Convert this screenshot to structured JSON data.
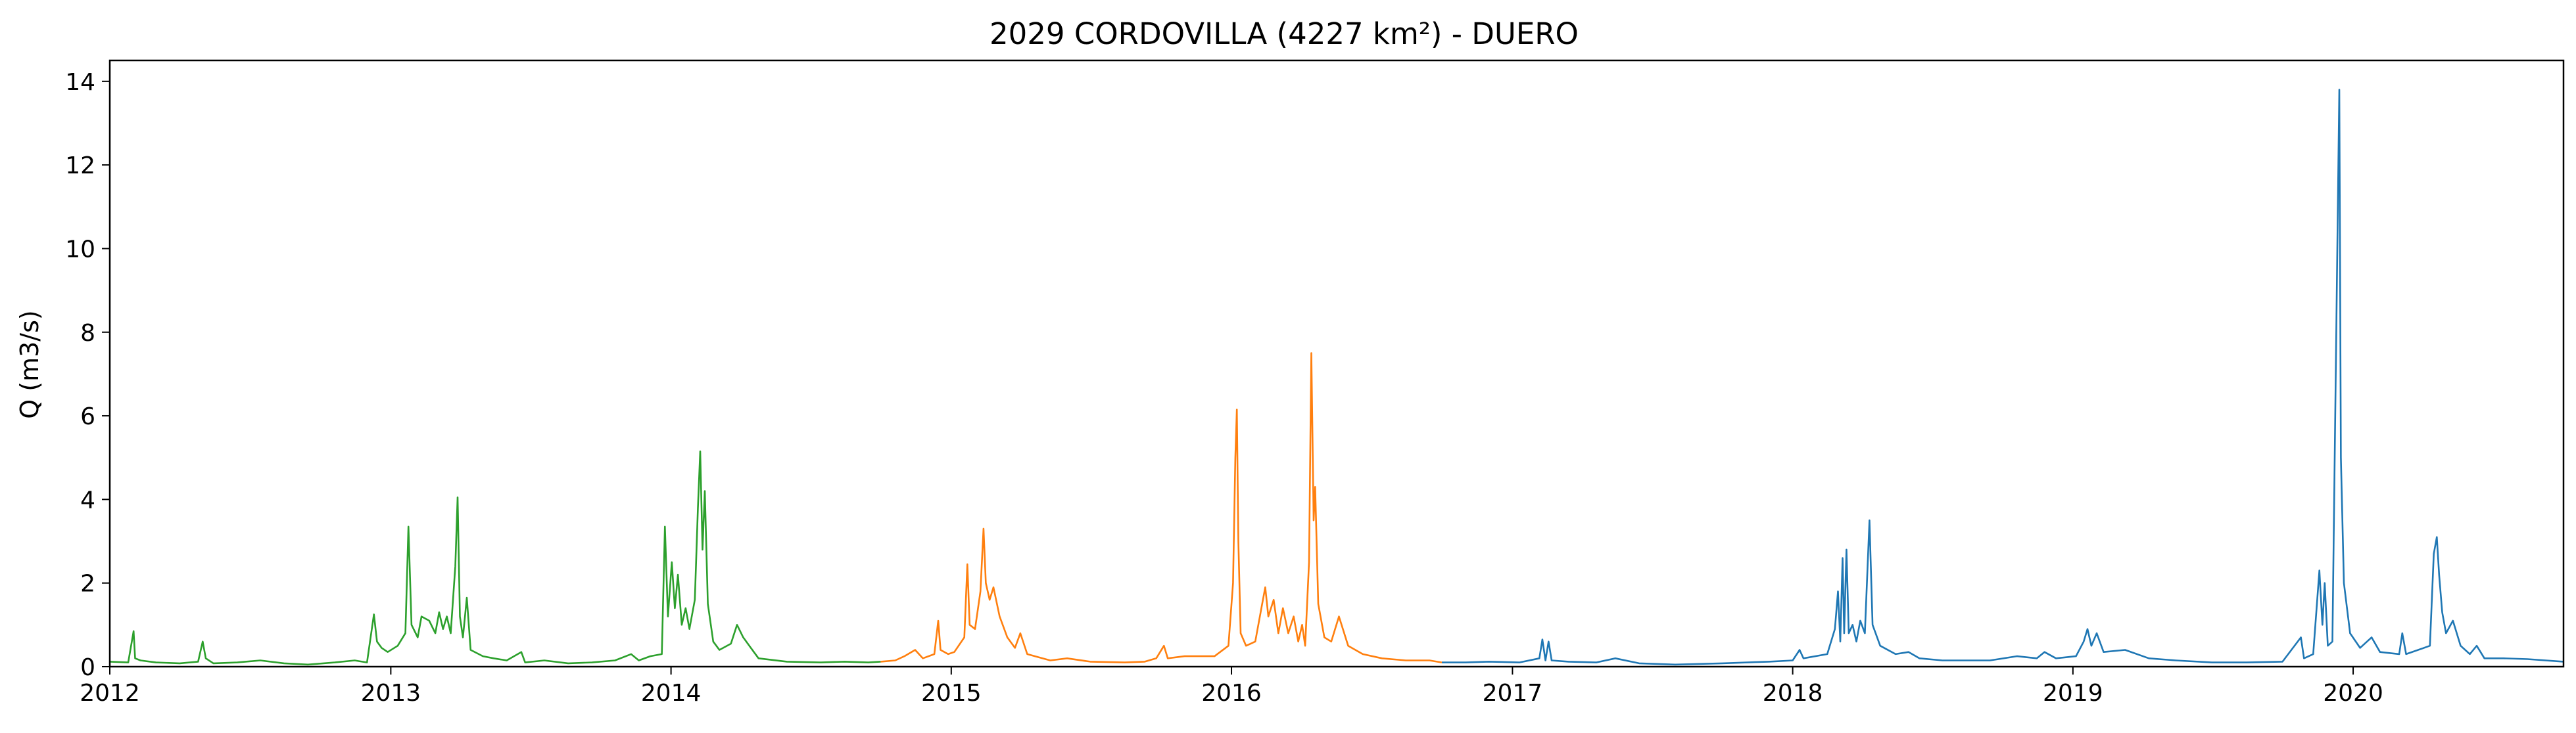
{
  "chart_data": {
    "type": "line",
    "title": "2029 CORDOVILLA (4227 km²) - DUERO",
    "xlabel": "",
    "ylabel": "Q (m3/s)",
    "xlim": [
      "2012-01-01",
      "2020-10-01"
    ],
    "ylim": [
      0,
      14.5
    ],
    "x_ticks": [
      "2012",
      "2013",
      "2014",
      "2015",
      "2016",
      "2017",
      "2018",
      "2019",
      "2020"
    ],
    "y_ticks": [
      "0",
      "2",
      "4",
      "6",
      "8",
      "10",
      "12",
      "14"
    ],
    "grid": false,
    "legend": "none",
    "series": [
      {
        "color": "#2ca02c",
        "points": [
          [
            "2012-01-01",
            0.12
          ],
          [
            "2012-01-25",
            0.1
          ],
          [
            "2012-02-01",
            0.85
          ],
          [
            "2012-02-03",
            0.2
          ],
          [
            "2012-02-10",
            0.15
          ],
          [
            "2012-03-01",
            0.1
          ],
          [
            "2012-04-01",
            0.08
          ],
          [
            "2012-04-25",
            0.12
          ],
          [
            "2012-05-01",
            0.6
          ],
          [
            "2012-05-05",
            0.2
          ],
          [
            "2012-05-15",
            0.08
          ],
          [
            "2012-06-15",
            0.1
          ],
          [
            "2012-07-15",
            0.15
          ],
          [
            "2012-08-15",
            0.08
          ],
          [
            "2012-09-15",
            0.05
          ],
          [
            "2012-10-20",
            0.1
          ],
          [
            "2012-11-15",
            0.15
          ],
          [
            "2012-12-01",
            0.1
          ],
          [
            "2012-12-10",
            1.25
          ],
          [
            "2012-12-14",
            0.6
          ],
          [
            "2012-12-20",
            0.45
          ],
          [
            "2012-12-28",
            0.35
          ],
          [
            "2013-01-10",
            0.5
          ],
          [
            "2013-01-20",
            0.8
          ],
          [
            "2013-01-24",
            3.35
          ],
          [
            "2013-01-28",
            1.0
          ],
          [
            "2013-02-05",
            0.7
          ],
          [
            "2013-02-10",
            1.2
          ],
          [
            "2013-02-20",
            1.1
          ],
          [
            "2013-02-28",
            0.8
          ],
          [
            "2013-03-05",
            1.3
          ],
          [
            "2013-03-10",
            0.9
          ],
          [
            "2013-03-15",
            1.2
          ],
          [
            "2013-03-20",
            0.8
          ],
          [
            "2013-03-26",
            2.4
          ],
          [
            "2013-03-29",
            4.05
          ],
          [
            "2013-04-01",
            1.2
          ],
          [
            "2013-04-05",
            0.7
          ],
          [
            "2013-04-10",
            1.65
          ],
          [
            "2013-04-15",
            0.4
          ],
          [
            "2013-05-01",
            0.25
          ],
          [
            "2013-05-15",
            0.2
          ],
          [
            "2013-06-01",
            0.15
          ],
          [
            "2013-06-20",
            0.35
          ],
          [
            "2013-06-25",
            0.1
          ],
          [
            "2013-07-20",
            0.15
          ],
          [
            "2013-08-20",
            0.08
          ],
          [
            "2013-09-20",
            0.1
          ],
          [
            "2013-10-20",
            0.15
          ],
          [
            "2013-11-10",
            0.3
          ],
          [
            "2013-11-20",
            0.15
          ],
          [
            "2013-12-05",
            0.25
          ],
          [
            "2013-12-20",
            0.3
          ],
          [
            "2013-12-24",
            3.35
          ],
          [
            "2013-12-28",
            1.2
          ],
          [
            "2014-01-02",
            2.5
          ],
          [
            "2014-01-06",
            1.4
          ],
          [
            "2014-01-10",
            2.2
          ],
          [
            "2014-01-15",
            1.0
          ],
          [
            "2014-01-20",
            1.4
          ],
          [
            "2014-01-25",
            0.9
          ],
          [
            "2014-02-01",
            1.6
          ],
          [
            "2014-02-05",
            3.8
          ],
          [
            "2014-02-08",
            5.15
          ],
          [
            "2014-02-11",
            2.8
          ],
          [
            "2014-02-14",
            4.2
          ],
          [
            "2014-02-18",
            1.5
          ],
          [
            "2014-02-25",
            0.6
          ],
          [
            "2014-03-05",
            0.4
          ],
          [
            "2014-03-20",
            0.55
          ],
          [
            "2014-03-28",
            1.0
          ],
          [
            "2014-04-05",
            0.7
          ],
          [
            "2014-04-15",
            0.45
          ],
          [
            "2014-04-25",
            0.2
          ],
          [
            "2014-06-01",
            0.12
          ],
          [
            "2014-07-15",
            0.1
          ],
          [
            "2014-08-15",
            0.12
          ],
          [
            "2014-09-15",
            0.1
          ],
          [
            "2014-10-01",
            0.12
          ]
        ]
      },
      {
        "color": "#ff7f0e",
        "points": [
          [
            "2014-10-01",
            0.12
          ],
          [
            "2014-10-20",
            0.15
          ],
          [
            "2014-11-01",
            0.25
          ],
          [
            "2014-11-15",
            0.4
          ],
          [
            "2014-11-25",
            0.2
          ],
          [
            "2014-12-10",
            0.3
          ],
          [
            "2014-12-15",
            1.1
          ],
          [
            "2014-12-18",
            0.4
          ],
          [
            "2014-12-28",
            0.3
          ],
          [
            "2015-01-05",
            0.35
          ],
          [
            "2015-01-18",
            0.7
          ],
          [
            "2015-01-22",
            2.45
          ],
          [
            "2015-01-25",
            1.0
          ],
          [
            "2015-02-01",
            0.9
          ],
          [
            "2015-02-08",
            1.8
          ],
          [
            "2015-02-12",
            3.3
          ],
          [
            "2015-02-15",
            2.0
          ],
          [
            "2015-02-20",
            1.6
          ],
          [
            "2015-02-25",
            1.9
          ],
          [
            "2015-03-05",
            1.2
          ],
          [
            "2015-03-15",
            0.7
          ],
          [
            "2015-03-25",
            0.45
          ],
          [
            "2015-04-01",
            0.8
          ],
          [
            "2015-04-10",
            0.3
          ],
          [
            "2015-04-20",
            0.25
          ],
          [
            "2015-05-10",
            0.15
          ],
          [
            "2015-06-01",
            0.2
          ],
          [
            "2015-07-01",
            0.12
          ],
          [
            "2015-08-15",
            0.1
          ],
          [
            "2015-09-10",
            0.12
          ],
          [
            "2015-09-25",
            0.2
          ],
          [
            "2015-10-05",
            0.5
          ],
          [
            "2015-10-10",
            0.2
          ],
          [
            "2015-11-01",
            0.25
          ],
          [
            "2015-12-10",
            0.25
          ],
          [
            "2015-12-28",
            0.5
          ],
          [
            "2016-01-03",
            2.0
          ],
          [
            "2016-01-06",
            5.0
          ],
          [
            "2016-01-08",
            6.15
          ],
          [
            "2016-01-10",
            3.0
          ],
          [
            "2016-01-13",
            0.8
          ],
          [
            "2016-01-20",
            0.5
          ],
          [
            "2016-02-01",
            0.6
          ],
          [
            "2016-02-10",
            1.5
          ],
          [
            "2016-02-14",
            1.9
          ],
          [
            "2016-02-18",
            1.2
          ],
          [
            "2016-02-25",
            1.6
          ],
          [
            "2016-03-02",
            0.8
          ],
          [
            "2016-03-08",
            1.4
          ],
          [
            "2016-03-15",
            0.8
          ],
          [
            "2016-03-22",
            1.2
          ],
          [
            "2016-03-28",
            0.6
          ],
          [
            "2016-04-02",
            1.0
          ],
          [
            "2016-04-06",
            0.5
          ],
          [
            "2016-04-11",
            2.5
          ],
          [
            "2016-04-14",
            7.5
          ],
          [
            "2016-04-17",
            3.5
          ],
          [
            "2016-04-19",
            4.3
          ],
          [
            "2016-04-23",
            1.5
          ],
          [
            "2016-05-01",
            0.7
          ],
          [
            "2016-05-10",
            0.6
          ],
          [
            "2016-05-20",
            1.2
          ],
          [
            "2016-06-01",
            0.5
          ],
          [
            "2016-06-20",
            0.3
          ],
          [
            "2016-07-15",
            0.2
          ],
          [
            "2016-08-15",
            0.15
          ],
          [
            "2016-09-15",
            0.15
          ],
          [
            "2016-10-01",
            0.1
          ]
        ]
      },
      {
        "color": "#1f77b4",
        "points": [
          [
            "2016-10-01",
            0.1
          ],
          [
            "2016-11-01",
            0.1
          ],
          [
            "2016-12-01",
            0.12
          ],
          [
            "2017-01-10",
            0.1
          ],
          [
            "2017-02-05",
            0.2
          ],
          [
            "2017-02-09",
            0.65
          ],
          [
            "2017-02-13",
            0.15
          ],
          [
            "2017-02-17",
            0.6
          ],
          [
            "2017-02-21",
            0.15
          ],
          [
            "2017-03-15",
            0.12
          ],
          [
            "2017-04-20",
            0.1
          ],
          [
            "2017-05-15",
            0.2
          ],
          [
            "2017-06-15",
            0.08
          ],
          [
            "2017-08-01",
            0.05
          ],
          [
            "2017-10-01",
            0.08
          ],
          [
            "2017-12-01",
            0.12
          ],
          [
            "2018-01-01",
            0.15
          ],
          [
            "2018-01-10",
            0.4
          ],
          [
            "2018-01-15",
            0.2
          ],
          [
            "2018-02-15",
            0.3
          ],
          [
            "2018-02-25",
            0.9
          ],
          [
            "2018-03-01",
            1.8
          ],
          [
            "2018-03-04",
            0.6
          ],
          [
            "2018-03-07",
            2.6
          ],
          [
            "2018-03-09",
            0.8
          ],
          [
            "2018-03-12",
            2.8
          ],
          [
            "2018-03-15",
            0.8
          ],
          [
            "2018-03-20",
            1.0
          ],
          [
            "2018-03-25",
            0.6
          ],
          [
            "2018-03-30",
            1.1
          ],
          [
            "2018-04-05",
            0.8
          ],
          [
            "2018-04-11",
            3.5
          ],
          [
            "2018-04-15",
            1.0
          ],
          [
            "2018-04-25",
            0.5
          ],
          [
            "2018-05-15",
            0.3
          ],
          [
            "2018-06-01",
            0.35
          ],
          [
            "2018-06-15",
            0.2
          ],
          [
            "2018-07-15",
            0.15
          ],
          [
            "2018-09-15",
            0.15
          ],
          [
            "2018-10-20",
            0.25
          ],
          [
            "2018-11-15",
            0.2
          ],
          [
            "2018-11-25",
            0.35
          ],
          [
            "2018-12-10",
            0.2
          ],
          [
            "2019-01-05",
            0.25
          ],
          [
            "2019-01-15",
            0.6
          ],
          [
            "2019-01-20",
            0.9
          ],
          [
            "2019-01-25",
            0.5
          ],
          [
            "2019-02-01",
            0.8
          ],
          [
            "2019-02-10",
            0.35
          ],
          [
            "2019-03-10",
            0.4
          ],
          [
            "2019-04-10",
            0.2
          ],
          [
            "2019-05-15",
            0.15
          ],
          [
            "2019-07-01",
            0.1
          ],
          [
            "2019-08-15",
            0.1
          ],
          [
            "2019-10-01",
            0.12
          ],
          [
            "2019-10-25",
            0.7
          ],
          [
            "2019-10-29",
            0.2
          ],
          [
            "2019-11-10",
            0.3
          ],
          [
            "2019-11-18",
            2.3
          ],
          [
            "2019-11-22",
            1.0
          ],
          [
            "2019-11-25",
            2.0
          ],
          [
            "2019-11-29",
            0.5
          ],
          [
            "2019-12-05",
            0.6
          ],
          [
            "2019-12-14",
            13.8
          ],
          [
            "2019-12-16",
            5.0
          ],
          [
            "2019-12-20",
            2.0
          ],
          [
            "2019-12-28",
            0.8
          ],
          [
            "2020-01-10",
            0.45
          ],
          [
            "2020-01-25",
            0.7
          ],
          [
            "2020-02-05",
            0.35
          ],
          [
            "2020-03-01",
            0.3
          ],
          [
            "2020-03-05",
            0.8
          ],
          [
            "2020-03-10",
            0.3
          ],
          [
            "2020-04-10",
            0.5
          ],
          [
            "2020-04-15",
            2.7
          ],
          [
            "2020-04-19",
            3.1
          ],
          [
            "2020-04-22",
            2.2
          ],
          [
            "2020-04-26",
            1.3
          ],
          [
            "2020-05-01",
            0.8
          ],
          [
            "2020-05-10",
            1.1
          ],
          [
            "2020-05-20",
            0.5
          ],
          [
            "2020-06-01",
            0.3
          ],
          [
            "2020-06-10",
            0.5
          ],
          [
            "2020-06-20",
            0.2
          ],
          [
            "2020-07-15",
            0.2
          ],
          [
            "2020-08-15",
            0.18
          ],
          [
            "2020-10-01",
            0.12
          ]
        ]
      }
    ]
  }
}
